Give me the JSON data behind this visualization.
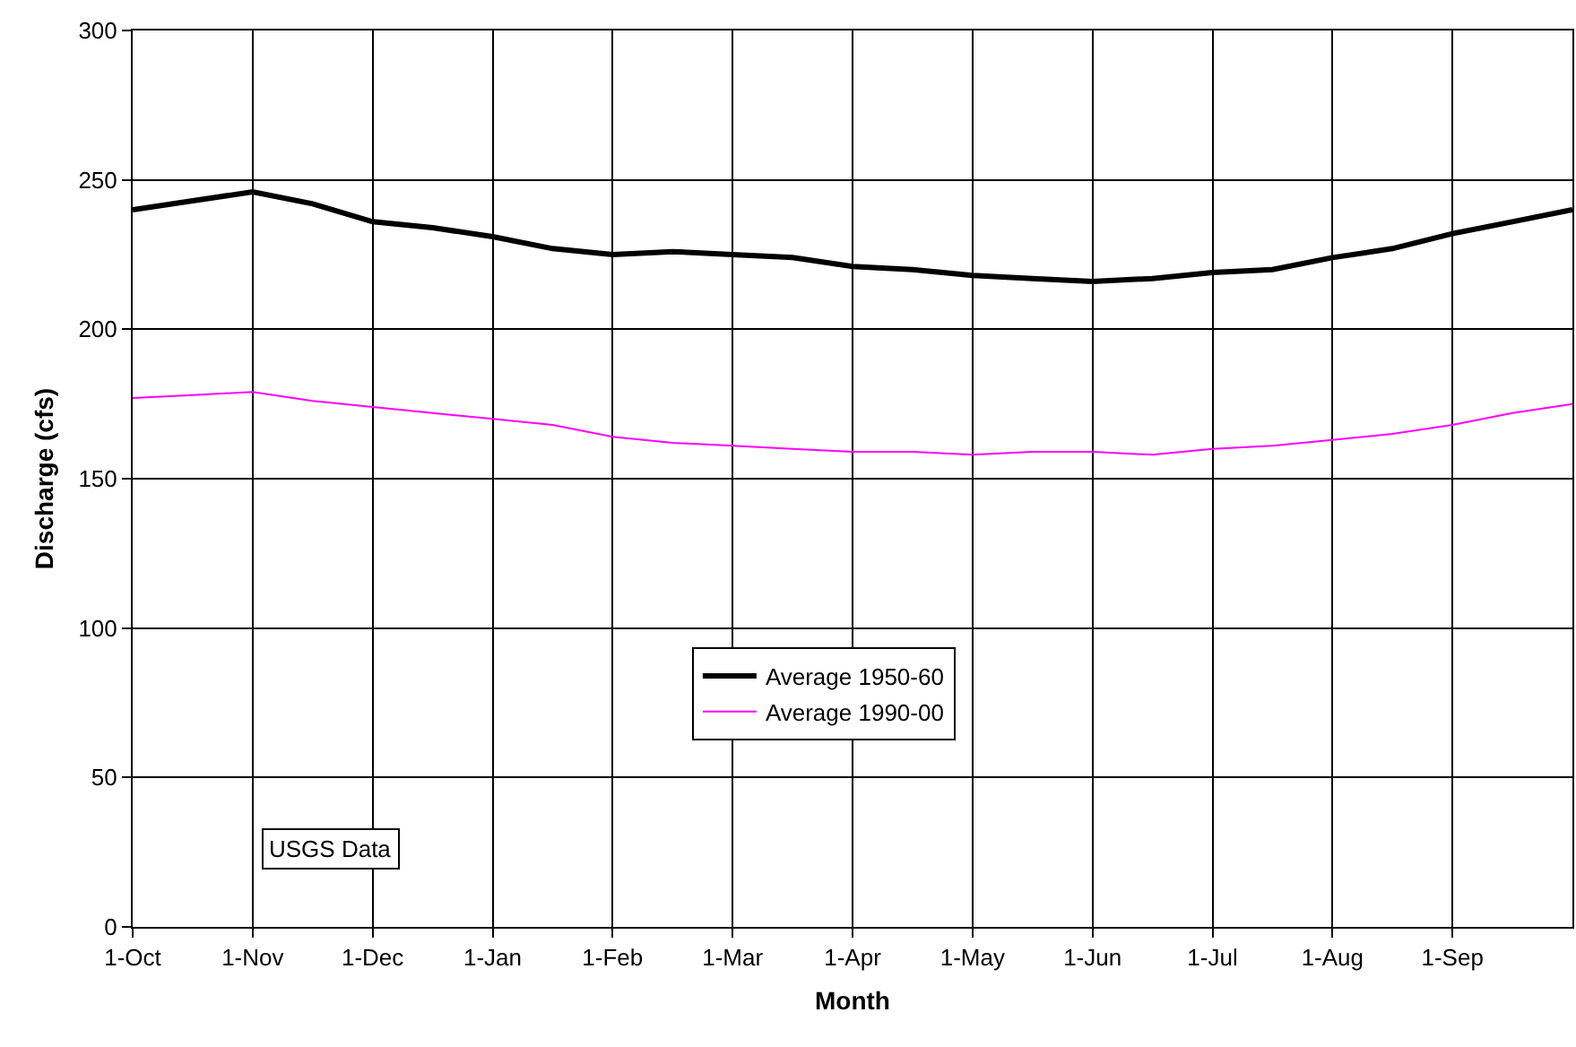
{
  "chart_data": {
    "type": "line",
    "xlabel": "Month",
    "ylabel": "Discharge (cfs)",
    "annotations": [
      "USGS Data"
    ],
    "categories": [
      "1-Oct",
      null,
      "1-Nov",
      null,
      "1-Dec",
      null,
      "1-Jan",
      null,
      "1-Feb",
      null,
      "1-Mar",
      null,
      "1-Apr",
      null,
      "1-May",
      null,
      "1-Jun",
      null,
      "1-Jul",
      null,
      "1-Aug",
      null,
      "1-Sep",
      null,
      null
    ],
    "series": [
      {
        "name": "Average 1950-60",
        "color": "#000000",
        "values": [
          240,
          243,
          246,
          242,
          236,
          234,
          231,
          227,
          225,
          226,
          225,
          224,
          221,
          220,
          218,
          217,
          216,
          217,
          219,
          220,
          224,
          227,
          232,
          236,
          240
        ]
      },
      {
        "name": "Average 1990-00",
        "color": "#ff00ff",
        "values": [
          177,
          178,
          179,
          176,
          174,
          172,
          170,
          168,
          164,
          162,
          161,
          160,
          159,
          159,
          158,
          159,
          159,
          158,
          160,
          161,
          163,
          165,
          168,
          172,
          175
        ]
      }
    ],
    "ylim": [
      0,
      300
    ],
    "yticks": [
      0,
      50,
      100,
      150,
      200,
      250,
      300
    ],
    "grid": true,
    "legend": "center",
    "marker": "none",
    "line_style": "solid"
  }
}
